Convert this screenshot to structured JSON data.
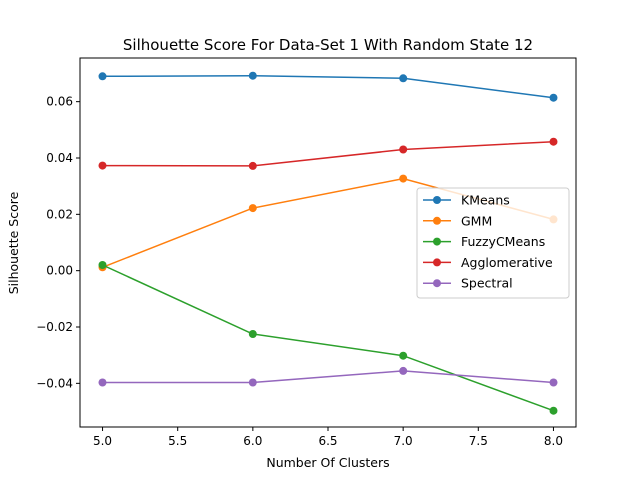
{
  "chart_data": {
    "type": "line",
    "title": "Silhouette Score For Data-Set 1 With Random State 12",
    "xlabel": "Number Of Clusters",
    "ylabel": "Silhouette Score",
    "x": [
      5.0,
      6.0,
      7.0,
      8.0
    ],
    "xlim": [
      4.85,
      8.15
    ],
    "ylim": [
      -0.0555,
      0.0755
    ],
    "xticks": [
      "5.0",
      "5.5",
      "6.0",
      "6.5",
      "7.0",
      "7.5",
      "8.0"
    ],
    "xtick_values": [
      5.0,
      5.5,
      6.0,
      6.5,
      7.0,
      7.5,
      8.0
    ],
    "yticks": [
      "−0.04",
      "−0.02",
      "0.00",
      "0.02",
      "0.04",
      "0.06"
    ],
    "ytick_values": [
      -0.04,
      -0.02,
      0.0,
      0.02,
      0.04,
      0.06
    ],
    "grid": false,
    "legend_position": "center-right",
    "series": [
      {
        "name": "KMeans",
        "color": "#1f77b4",
        "values": [
          0.069,
          0.0692,
          0.0683,
          0.0614
        ]
      },
      {
        "name": "GMM",
        "color": "#ff7f0e",
        "values": [
          0.0012,
          0.0222,
          0.0327,
          0.0182
        ]
      },
      {
        "name": "FuzzyCMeans",
        "color": "#2ca02c",
        "values": [
          0.002,
          -0.0225,
          -0.0302,
          -0.0497
        ]
      },
      {
        "name": "Agglomerative",
        "color": "#d62728",
        "values": [
          0.0373,
          0.0372,
          0.043,
          0.0458
        ]
      },
      {
        "name": "Spectral",
        "color": "#9467bd",
        "values": [
          -0.0397,
          -0.0397,
          -0.0356,
          -0.0397
        ]
      }
    ]
  }
}
